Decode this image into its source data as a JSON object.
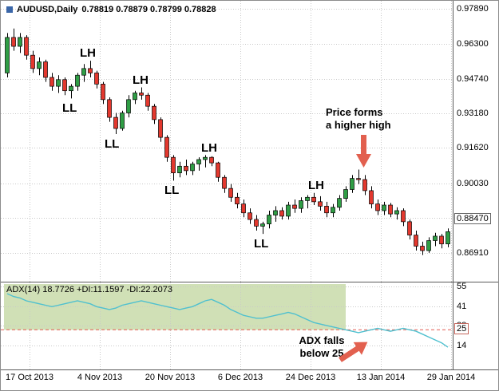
{
  "header": {
    "symbol": "AUDUSD,Daily",
    "ohlc": "0.78819 0.78879 0.78799 0.78828"
  },
  "indicator": {
    "header": "ADX(14) 18.7726 +DI:11.1597 -DI:22.2073",
    "threshold_label": "25"
  },
  "annotations": {
    "lh_labels": [
      "LH",
      "LH",
      "LH",
      "LH"
    ],
    "ll_labels": [
      "LL",
      "LL",
      "LL",
      "LL"
    ],
    "price_note": "Price forms\na higher high",
    "adx_note": "ADX falls\nbelow 25"
  },
  "colors": {
    "up_candle": "#2f9e45",
    "down_candle": "#e3382e",
    "wick": "#000000",
    "adx_line": "#4fc0cf",
    "shade": "rgba(170,198,122,0.55)",
    "threshold_line": "#e05a50",
    "arrow": "#e2604f",
    "grid": "#c9c9c9"
  },
  "chart_data": [
    {
      "type": "candlestick",
      "title": "AUDUSD Daily",
      "ylim": [
        0.856,
        0.9825
      ],
      "y_ticks": [
        "0.97890",
        "0.96300",
        "0.94740",
        "0.93180",
        "0.91620",
        "0.90030",
        "0.88470",
        "0.86910"
      ],
      "boxed_tick_index": 6,
      "x_tick_labels": [
        "17 Oct 2013",
        "4 Nov 2013",
        "20 Nov 2013",
        "6 Dec 2013",
        "24 Dec 2013",
        "13 Jan 2014",
        "29 Jan 2014"
      ],
      "candles": [
        [
          0.95,
          0.968,
          0.948,
          0.966
        ],
        [
          0.966,
          0.97,
          0.96,
          0.962
        ],
        [
          0.962,
          0.968,
          0.959,
          0.966
        ],
        [
          0.966,
          0.967,
          0.956,
          0.958
        ],
        [
          0.958,
          0.96,
          0.95,
          0.952
        ],
        [
          0.952,
          0.957,
          0.949,
          0.955
        ],
        [
          0.955,
          0.956,
          0.946,
          0.948
        ],
        [
          0.948,
          0.95,
          0.942,
          0.944
        ],
        [
          0.944,
          0.949,
          0.941,
          0.947
        ],
        [
          0.947,
          0.948,
          0.94,
          0.942
        ],
        [
          0.942,
          0.945,
          0.9385,
          0.944
        ],
        [
          0.944,
          0.95,
          0.942,
          0.949
        ],
        [
          0.949,
          0.954,
          0.946,
          0.952
        ],
        [
          0.952,
          0.9555,
          0.948,
          0.95
        ],
        [
          0.95,
          0.951,
          0.943,
          0.945
        ],
        [
          0.945,
          0.946,
          0.936,
          0.938
        ],
        [
          0.938,
          0.939,
          0.928,
          0.93
        ],
        [
          0.93,
          0.932,
          0.9225,
          0.925
        ],
        [
          0.925,
          0.933,
          0.924,
          0.932
        ],
        [
          0.932,
          0.94,
          0.93,
          0.938
        ],
        [
          0.938,
          0.942,
          0.936,
          0.941
        ],
        [
          0.941,
          0.9435,
          0.938,
          0.94
        ],
        [
          0.94,
          0.941,
          0.933,
          0.935
        ],
        [
          0.935,
          0.936,
          0.927,
          0.929
        ],
        [
          0.929,
          0.93,
          0.919,
          0.921
        ],
        [
          0.921,
          0.922,
          0.91,
          0.912
        ],
        [
          0.912,
          0.913,
          0.9015,
          0.905
        ],
        [
          0.905,
          0.91,
          0.903,
          0.908
        ],
        [
          0.908,
          0.911,
          0.904,
          0.906
        ],
        [
          0.906,
          0.91,
          0.904,
          0.909
        ],
        [
          0.909,
          0.912,
          0.906,
          0.911
        ],
        [
          0.911,
          0.913,
          0.9075,
          0.912
        ],
        [
          0.912,
          0.9125,
          0.908,
          0.9095
        ],
        [
          0.9095,
          0.91,
          0.901,
          0.903
        ],
        [
          0.903,
          0.904,
          0.896,
          0.898
        ],
        [
          0.898,
          0.9,
          0.892,
          0.894
        ],
        [
          0.894,
          0.896,
          0.889,
          0.891
        ],
        [
          0.891,
          0.893,
          0.885,
          0.887
        ],
        [
          0.887,
          0.889,
          0.882,
          0.884
        ],
        [
          0.884,
          0.886,
          0.879,
          0.881
        ],
        [
          0.881,
          0.883,
          0.8775,
          0.882
        ],
        [
          0.882,
          0.888,
          0.88,
          0.886
        ],
        [
          0.886,
          0.89,
          0.883,
          0.888
        ],
        [
          0.888,
          0.8895,
          0.884,
          0.8855
        ],
        [
          0.8855,
          0.892,
          0.884,
          0.8905
        ],
        [
          0.8905,
          0.893,
          0.887,
          0.889
        ],
        [
          0.889,
          0.894,
          0.887,
          0.8925
        ],
        [
          0.8925,
          0.895,
          0.889,
          0.894
        ],
        [
          0.894,
          0.896,
          0.8905,
          0.892
        ],
        [
          0.892,
          0.8945,
          0.888,
          0.89
        ],
        [
          0.89,
          0.892,
          0.885,
          0.887
        ],
        [
          0.887,
          0.891,
          0.885,
          0.8895
        ],
        [
          0.8895,
          0.895,
          0.888,
          0.8935
        ],
        [
          0.8935,
          0.899,
          0.892,
          0.8975
        ],
        [
          0.8975,
          0.904,
          0.896,
          0.9025
        ],
        [
          0.9025,
          0.9065,
          0.9,
          0.902
        ],
        [
          0.902,
          0.904,
          0.895,
          0.897
        ],
        [
          0.897,
          0.899,
          0.889,
          0.891
        ],
        [
          0.891,
          0.893,
          0.886,
          0.888
        ],
        [
          0.888,
          0.892,
          0.886,
          0.8905
        ],
        [
          0.8905,
          0.8915,
          0.885,
          0.8865
        ],
        [
          0.8865,
          0.8895,
          0.884,
          0.888
        ],
        [
          0.888,
          0.889,
          0.881,
          0.883
        ],
        [
          0.883,
          0.884,
          0.875,
          0.877
        ],
        [
          0.877,
          0.879,
          0.87,
          0.872
        ],
        [
          0.872,
          0.874,
          0.868,
          0.87
        ],
        [
          0.87,
          0.876,
          0.869,
          0.8745
        ],
        [
          0.8745,
          0.878,
          0.872,
          0.8765
        ],
        [
          0.8765,
          0.8775,
          0.871,
          0.873
        ],
        [
          0.873,
          0.88,
          0.8715,
          0.8785
        ]
      ]
    },
    {
      "type": "line",
      "name": "ADX(14)",
      "ylim": [
        -2.4,
        57.7
      ],
      "y_ticks": [
        55,
        41,
        28,
        14
      ],
      "threshold": 25,
      "shade_to_bar": 53,
      "values": [
        50,
        48,
        47,
        45,
        44,
        43,
        42,
        41,
        42,
        43,
        44,
        45,
        44,
        43,
        41,
        40,
        39,
        40,
        42,
        43,
        44,
        45,
        44,
        43,
        42,
        41,
        40,
        39,
        40,
        41,
        43,
        45,
        46,
        44,
        42,
        39,
        37,
        35,
        34,
        33,
        33,
        34,
        35,
        36,
        37,
        36,
        34,
        32,
        30,
        29,
        28,
        27,
        26,
        25,
        24,
        23,
        24,
        25,
        26,
        25,
        24,
        25,
        26,
        25,
        24,
        22,
        20,
        18,
        16,
        13
      ]
    }
  ]
}
